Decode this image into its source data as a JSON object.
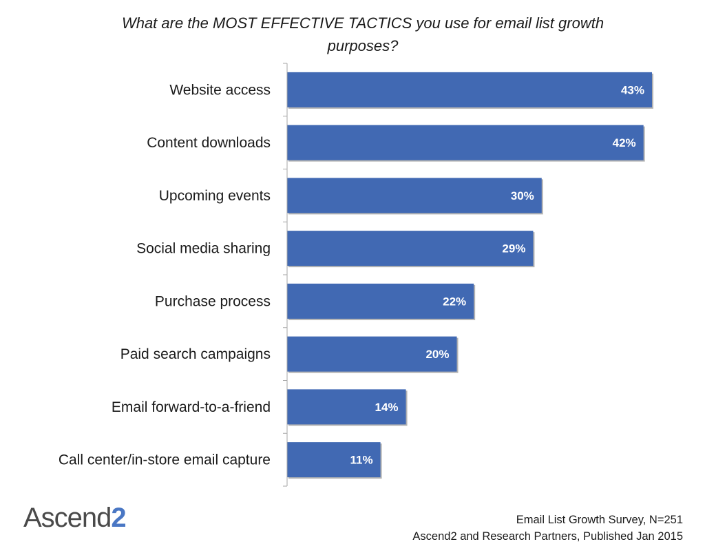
{
  "chart_data": {
    "type": "bar",
    "orientation": "horizontal",
    "title": "What are the MOST EFFECTIVE TACTICS you use for email list growth purposes?",
    "title_lines": [
      "What are the MOST EFFECTIVE TACTICS you use for email list growth",
      "purposes?"
    ],
    "categories": [
      "Website access",
      "Content downloads",
      "Upcoming events",
      "Social media sharing",
      "Purchase process",
      "Paid search campaigns",
      "Email forward-to-a-friend",
      "Call center/in-store email capture"
    ],
    "values": [
      43,
      42,
      30,
      29,
      22,
      20,
      14,
      11
    ],
    "value_labels": [
      "43%",
      "42%",
      "30%",
      "29%",
      "22%",
      "20%",
      "14%",
      "11%"
    ],
    "unit": "%",
    "xlim": [
      0,
      43
    ],
    "grid": false,
    "bar_color": "#4169b3"
  },
  "logo": {
    "text": "Ascend",
    "accent": "2"
  },
  "source": {
    "line1": "Email List Growth Survey, N=251",
    "line2": "Ascend2 and Research Partners, Published Jan 2015"
  }
}
